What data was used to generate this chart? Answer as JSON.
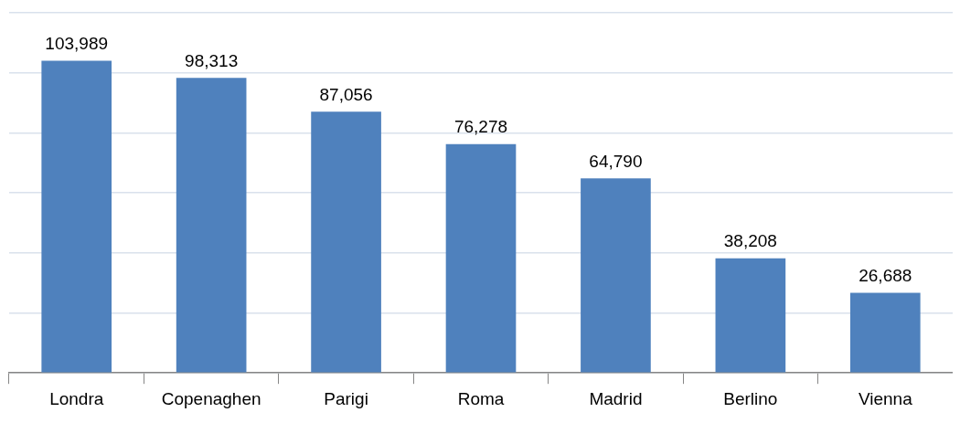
{
  "chart_data": {
    "type": "bar",
    "categories": [
      "Londra",
      "Copenaghen",
      "Parigi",
      "Roma",
      "Madrid",
      "Berlino",
      "Vienna"
    ],
    "values": [
      103989,
      98313,
      87056,
      76278,
      64790,
      38208,
      26688
    ],
    "value_labels": [
      "103,989",
      "98,313",
      "87,056",
      "76,278",
      "64,790",
      "38,208",
      "26,688"
    ],
    "color": "#4f81bd",
    "ylim": [
      0,
      120000
    ],
    "yticks": [
      0,
      20000,
      40000,
      60000,
      80000,
      100000,
      120000
    ],
    "grid": "y",
    "tick_labels": "x"
  }
}
